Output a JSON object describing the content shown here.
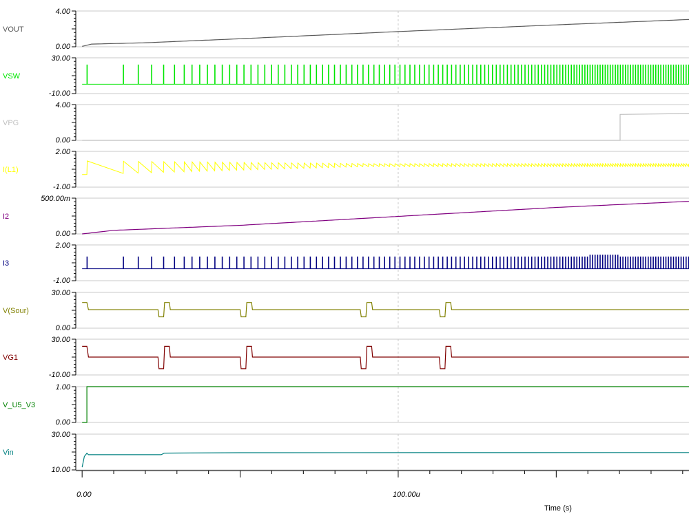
{
  "chart_data": {
    "type": "line",
    "title": "",
    "xlabel": "Time (s)",
    "xlim": [
      -2e-06,
      0.000192
    ],
    "x_tick_labels": [
      "0.00",
      "100.00u"
    ],
    "x_ticks": [
      0,
      0.0001
    ],
    "grid": true,
    "panels": [
      {
        "name": "VOUT",
        "color": "#595959",
        "ylim": [
          0,
          4
        ],
        "y_tick_labels": [
          "0.00",
          "4.00"
        ],
        "shape": "ramp",
        "points": [
          [
            0,
            0.05
          ],
          [
            3e-06,
            0.3
          ],
          [
            2e-05,
            0.45
          ],
          [
            5e-05,
            0.9
          ],
          [
            0.0001,
            1.7
          ],
          [
            0.00015,
            2.45
          ],
          [
            0.000192,
            3.05
          ]
        ]
      },
      {
        "name": "VSW",
        "color": "#00e600",
        "ylim": [
          -10,
          30
        ],
        "y_tick_labels": [
          "-10.00",
          "30.00"
        ],
        "shape": "spikes",
        "baseline": 0.5,
        "peak": 22
      },
      {
        "name": "VPG",
        "color": "#bfbfbf",
        "ylim": [
          0,
          4
        ],
        "y_tick_labels": [
          "0.00",
          "4.00"
        ],
        "shape": "step",
        "points": [
          [
            0,
            0
          ],
          [
            0.0001702,
            0
          ],
          [
            0.0001702,
            2.9
          ],
          [
            0.000192,
            3.0
          ]
        ]
      },
      {
        "name": "I(L1)",
        "color": "#ffff00",
        "ylim": [
          -1,
          2
        ],
        "y_tick_labels": [
          "-1.00",
          "2.00"
        ],
        "shape": "sawtooth",
        "low": 0.05,
        "high": 1.2,
        "steady": 0.85
      },
      {
        "name": "I2",
        "color": "#800080",
        "ylim": [
          0,
          0.5
        ],
        "y_tick_labels": [
          "0.00",
          "500.00m"
        ],
        "shape": "ramp",
        "points": [
          [
            0,
            0.0
          ],
          [
            1e-05,
            0.05
          ],
          [
            5e-05,
            0.12
          ],
          [
            0.0001,
            0.245
          ],
          [
            0.00015,
            0.37
          ],
          [
            0.000192,
            0.455
          ]
        ]
      },
      {
        "name": "I3",
        "color": "#000080",
        "ylim": [
          -1,
          2
        ],
        "y_tick_labels": [
          "-1.00",
          "2.00"
        ],
        "shape": "spikes",
        "baseline": 0,
        "peak": 1.0
      },
      {
        "name": "V(Sour)",
        "color": "#808000",
        "ylim": [
          0,
          30
        ],
        "y_tick_labels": [
          "0.00",
          "30.00"
        ],
        "shape": "pulses",
        "level": 15.5,
        "low": 9.5,
        "high": 21.5
      },
      {
        "name": "VG1",
        "color": "#800000",
        "ylim": [
          -10,
          30
        ],
        "y_tick_labels": [
          "-10.00",
          "30.00"
        ],
        "shape": "pulses",
        "level": 10,
        "low": -3,
        "high": 22
      },
      {
        "name": "V_U5_V3",
        "color": "#008000",
        "ylim": [
          0,
          1
        ],
        "y_tick_labels": [
          "0.00",
          "1.00"
        ],
        "shape": "step",
        "points": [
          [
            0,
            0
          ],
          [
            1.5e-06,
            0
          ],
          [
            1.5e-06,
            1.0
          ],
          [
            0.000192,
            1.0
          ]
        ]
      },
      {
        "name": "Vin",
        "color": "#008080",
        "ylim": [
          10,
          30
        ],
        "y_tick_labels": [
          "10.00",
          "30.00"
        ],
        "shape": "ramp",
        "points": [
          [
            0,
            11.5
          ],
          [
            7e-07,
            17.5
          ],
          [
            1.5e-06,
            19.3
          ],
          [
            2e-06,
            18.5
          ],
          [
            2.5e-05,
            18.5
          ],
          [
            2.6e-05,
            19.4
          ],
          [
            5e-05,
            19.6
          ],
          [
            0.000192,
            19.7
          ]
        ]
      }
    ]
  }
}
